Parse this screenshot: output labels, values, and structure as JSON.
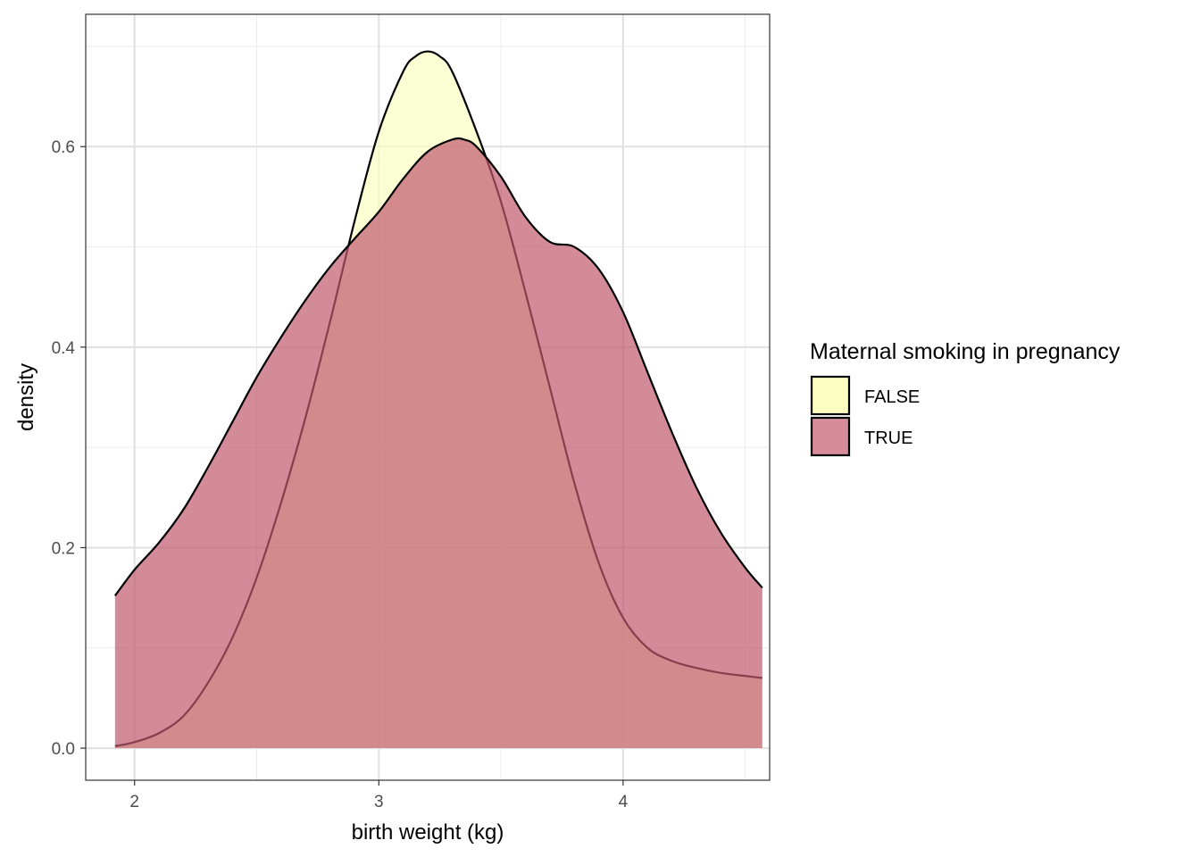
{
  "chart_data": {
    "type": "area",
    "subtype": "density",
    "xlabel": "birth weight (kg)",
    "ylabel": "density",
    "xlim": [
      1.8,
      4.6
    ],
    "ylim": [
      -0.032,
      0.732
    ],
    "x_ticks": [
      2,
      3,
      4
    ],
    "x_tick_labels": [
      "2",
      "3",
      "4"
    ],
    "y_ticks": [
      0.0,
      0.2,
      0.4,
      0.6
    ],
    "y_tick_labels": [
      "0.0",
      "0.2",
      "0.4",
      "0.6"
    ],
    "grid": true,
    "legend": {
      "title": "Maternal smoking in pregnancy",
      "position": "right",
      "entries": [
        "FALSE",
        "TRUE"
      ]
    },
    "series": [
      {
        "name": "FALSE",
        "fill": "#fbfec0",
        "x": [
          1.92,
          2.0,
          2.1,
          2.2,
          2.3,
          2.4,
          2.5,
          2.6,
          2.7,
          2.8,
          2.9,
          3.0,
          3.1,
          3.15,
          3.2,
          3.25,
          3.3,
          3.4,
          3.5,
          3.6,
          3.7,
          3.8,
          3.9,
          4.0,
          4.1,
          4.2,
          4.3,
          4.4,
          4.5,
          4.57
        ],
        "y": [
          0.002,
          0.006,
          0.015,
          0.032,
          0.065,
          0.11,
          0.17,
          0.245,
          0.33,
          0.425,
          0.525,
          0.615,
          0.675,
          0.69,
          0.695,
          0.69,
          0.675,
          0.615,
          0.545,
          0.455,
          0.36,
          0.265,
          0.185,
          0.13,
          0.1,
          0.087,
          0.08,
          0.075,
          0.072,
          0.07
        ]
      },
      {
        "name": "TRUE",
        "fill": "#c0596e",
        "x": [
          1.92,
          2.0,
          2.1,
          2.2,
          2.3,
          2.4,
          2.5,
          2.6,
          2.7,
          2.8,
          2.9,
          3.0,
          3.1,
          3.2,
          3.3,
          3.35,
          3.4,
          3.5,
          3.6,
          3.7,
          3.8,
          3.9,
          4.0,
          4.1,
          4.2,
          4.3,
          4.4,
          4.5,
          4.57
        ],
        "y": [
          0.152,
          0.178,
          0.205,
          0.238,
          0.28,
          0.325,
          0.37,
          0.41,
          0.447,
          0.48,
          0.508,
          0.535,
          0.568,
          0.595,
          0.607,
          0.607,
          0.6,
          0.57,
          0.53,
          0.505,
          0.5,
          0.478,
          0.435,
          0.375,
          0.315,
          0.26,
          0.215,
          0.18,
          0.16
        ]
      }
    ]
  }
}
